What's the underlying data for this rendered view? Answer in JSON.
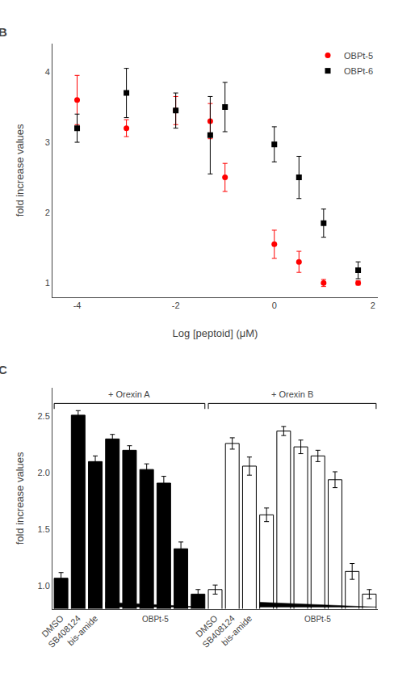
{
  "chart_data": [
    {
      "type": "scatter",
      "title": "B",
      "xlabel": "Log [peptoid] (μM)",
      "ylabel": "fold increase values",
      "series": [
        {
          "name": "OBPt-5",
          "color": "red",
          "marker": "circle",
          "x": [
            -4,
            -3,
            -2,
            -1.3,
            -1,
            0,
            0.5,
            1,
            1.7
          ],
          "values": [
            3.6,
            3.2,
            3.45,
            3.3,
            2.5,
            1.55,
            1.3,
            1.0,
            1.0
          ],
          "errors": [
            0.35,
            0.12,
            0.2,
            0.25,
            0.2,
            0.2,
            0.15,
            0.05,
            0.03
          ]
        },
        {
          "name": "OBPt-6",
          "color": "black",
          "marker": "square",
          "x": [
            -4,
            -3,
            -2,
            -1.3,
            -1,
            0,
            0.5,
            1,
            1.7
          ],
          "values": [
            3.2,
            3.7,
            3.45,
            3.1,
            3.5,
            2.97,
            2.5,
            1.85,
            1.18
          ],
          "errors": [
            0.2,
            0.35,
            0.25,
            0.55,
            0.35,
            0.25,
            0.3,
            0.2,
            0.12
          ]
        }
      ],
      "xlim": [
        -4.5,
        2.1
      ],
      "xticks": [
        -4,
        -2,
        0,
        2
      ],
      "ylim": [
        0.8,
        4.4
      ],
      "yticks": [
        1,
        2,
        3,
        4
      ],
      "grid": false,
      "legend": "upper right"
    },
    {
      "type": "bar",
      "title": "C",
      "ylabel": "fold increase values",
      "categories": [
        "DMSO",
        "SB408124",
        "bis-amide",
        null,
        null,
        null,
        null,
        null,
        null,
        "DMSO",
        "SB408124",
        "bis-amide",
        null,
        null,
        null,
        null,
        null,
        null,
        null
      ],
      "series": [
        {
          "name": "+ Orexin A",
          "color": "black",
          "values": [
            1.07,
            2.51,
            2.1,
            2.3,
            2.2,
            2.03,
            1.91,
            1.33,
            0.93,
            null,
            null,
            null,
            null,
            null,
            null,
            null,
            null,
            null,
            null
          ],
          "errors": [
            0.05,
            0.04,
            0.05,
            0.04,
            0.04,
            0.05,
            0.06,
            0.06,
            0.04,
            null,
            null,
            null,
            null,
            null,
            null,
            null,
            null,
            null,
            null
          ]
        },
        {
          "name": "+ Orexin B",
          "color": "white",
          "values": [
            null,
            null,
            null,
            null,
            null,
            null,
            null,
            null,
            null,
            0.97,
            2.26,
            2.06,
            1.63,
            2.37,
            2.23,
            2.15,
            1.94,
            1.13,
            0.93
          ],
          "errors": [
            null,
            null,
            null,
            null,
            null,
            null,
            null,
            null,
            null,
            0.04,
            0.05,
            0.08,
            0.06,
            0.04,
            0.06,
            0.05,
            0.07,
            0.07,
            0.04
          ]
        }
      ],
      "ylim": [
        0.8,
        2.75
      ],
      "yticks": [
        {
          "value": 1,
          "label": "1.0"
        },
        1.5,
        {
          "value": 2,
          "label": "2.0"
        },
        2.5
      ],
      "grid": false,
      "annotations": [
        {
          "text": "OBPt-5",
          "from": 3,
          "to": 8
        },
        {
          "text": "OBPt-5",
          "from": 12,
          "to": 18
        }
      ]
    }
  ]
}
